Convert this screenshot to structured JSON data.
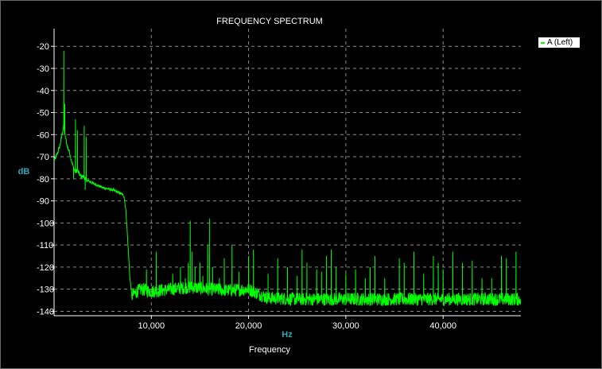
{
  "chart_data": {
    "type": "line",
    "title": "FREQUENCY SPECTRUM",
    "ylabel": "dB",
    "xunit_label": "Hz",
    "xlabel": "Frequency",
    "xlim": [
      0,
      48000
    ],
    "ylim": [
      -142,
      -12
    ],
    "x_ticks": [
      10000,
      20000,
      30000,
      40000
    ],
    "x_tick_labels": [
      "10,000",
      "20,000",
      "30,000",
      "40,000"
    ],
    "y_ticks": [
      -20,
      -30,
      -40,
      -50,
      -60,
      -70,
      -80,
      -90,
      -100,
      -110,
      -120,
      -130,
      -140
    ],
    "y_tick_labels": [
      "-20",
      "-30",
      "-40",
      "-50",
      "-60",
      "-70",
      "-80",
      "-90",
      "-100",
      "-110",
      "-120",
      "-130",
      "-140"
    ],
    "grid": true,
    "legend_position": "top-right",
    "colors": {
      "background": "#000000",
      "series": "#00ff00",
      "grid": "#8a8a8a",
      "axis_label": "#2aa8b8"
    },
    "series": [
      {
        "name": "A (Left)",
        "envelope": {
          "x": [
            0,
            300,
            600,
            900,
            1000,
            1100,
            1200,
            1400,
            1600,
            1800,
            2000,
            2200,
            2400,
            2600,
            2800,
            3000,
            3200,
            3500,
            4000,
            4500,
            5000,
            5500,
            6000,
            6500,
            7000,
            7200,
            7400,
            7600,
            7800,
            8000,
            8500,
            9000,
            10000,
            12000,
            14000,
            16000,
            18000,
            20000,
            20500,
            21000,
            21500,
            22000,
            25000,
            30000,
            35000,
            40000,
            45000,
            48000
          ],
          "y": [
            -72,
            -69,
            -65,
            -58,
            -56,
            -60,
            -62,
            -66,
            -68,
            -72,
            -75,
            -77,
            -76,
            -78,
            -79,
            -79,
            -80,
            -81,
            -82,
            -83,
            -84,
            -84.5,
            -85,
            -86,
            -87,
            -88,
            -95,
            -110,
            -125,
            -133,
            -131,
            -130,
            -131,
            -130,
            -129,
            -130,
            -130.5,
            -130,
            -131,
            -132,
            -133,
            -134,
            -134.5,
            -134.5,
            -134.5,
            -134.5,
            -134.5,
            -134.5
          ]
        },
        "peaks": {
          "x": [
            1000,
            1100,
            2200,
            2400,
            3100,
            3300,
            9500,
            10500,
            12200,
            13000,
            13500,
            13800,
            14000,
            14200,
            14500,
            15000,
            15300,
            15800,
            16000,
            16300,
            17000,
            17500,
            18300,
            19000,
            20000,
            20500,
            22000,
            23000,
            24000,
            25000,
            25500,
            26000,
            27000,
            27500,
            28000,
            28500,
            29000,
            30000,
            31000,
            32000,
            32500,
            33000,
            34000,
            35500,
            36000,
            37000,
            38000,
            39000,
            39500,
            40000,
            41000,
            42000,
            43000,
            44000,
            45000,
            46000,
            46500,
            47500
          ],
          "y": [
            -22,
            -46,
            -53,
            -58,
            -56,
            -61,
            -121,
            -113,
            -123,
            -120,
            -125,
            -118,
            -99,
            -113,
            -120,
            -118,
            -124,
            -110,
            -98,
            -120,
            -125,
            -116,
            -110,
            -122,
            -115,
            -112,
            -123,
            -116,
            -120,
            -124,
            -112,
            -118,
            -121,
            -122,
            -115,
            -112,
            -120,
            -123,
            -121,
            -125,
            -120,
            -115,
            -125,
            -116,
            -118,
            -113,
            -123,
            -115,
            -118,
            -121,
            -113,
            -118,
            -117,
            -125,
            -125,
            -115,
            -116,
            -113
          ]
        },
        "dips": {
          "x": [
            2000,
            3200
          ],
          "y": [
            -80,
            -85
          ]
        }
      }
    ]
  }
}
